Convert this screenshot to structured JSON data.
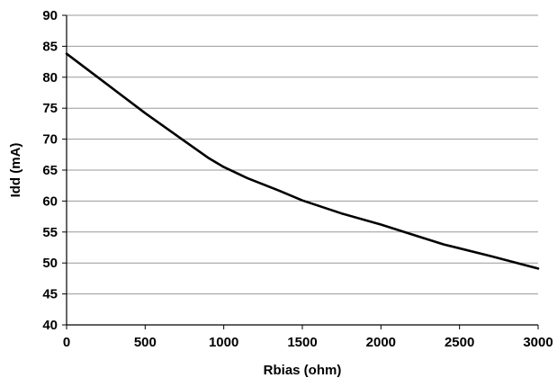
{
  "chart_data": {
    "type": "line",
    "title": "",
    "xlabel": "Rbias (ohm)",
    "ylabel": "Idd (mA)",
    "xlim": [
      0,
      3000
    ],
    "ylim": [
      40,
      90
    ],
    "x_ticks": [
      0,
      500,
      1000,
      1500,
      2000,
      2500,
      3000
    ],
    "y_ticks": [
      40,
      45,
      50,
      55,
      60,
      65,
      70,
      75,
      80,
      85,
      90
    ],
    "grid": {
      "horizontal": true,
      "vertical": false
    },
    "legend": "none",
    "colors": {
      "line": "#000000",
      "grid": "#999999",
      "axis": "#000000"
    },
    "series": [
      {
        "x": [
          0,
          250,
          500,
          750,
          900,
          1000,
          1150,
          1350,
          1500,
          1750,
          2000,
          2200,
          2400,
          2700,
          3000
        ],
        "y": [
          83.8,
          79.0,
          74.2,
          69.7,
          67.0,
          65.5,
          63.7,
          61.7,
          60.1,
          58.0,
          56.2,
          54.6,
          53.0,
          51.1,
          49.1
        ]
      }
    ]
  }
}
